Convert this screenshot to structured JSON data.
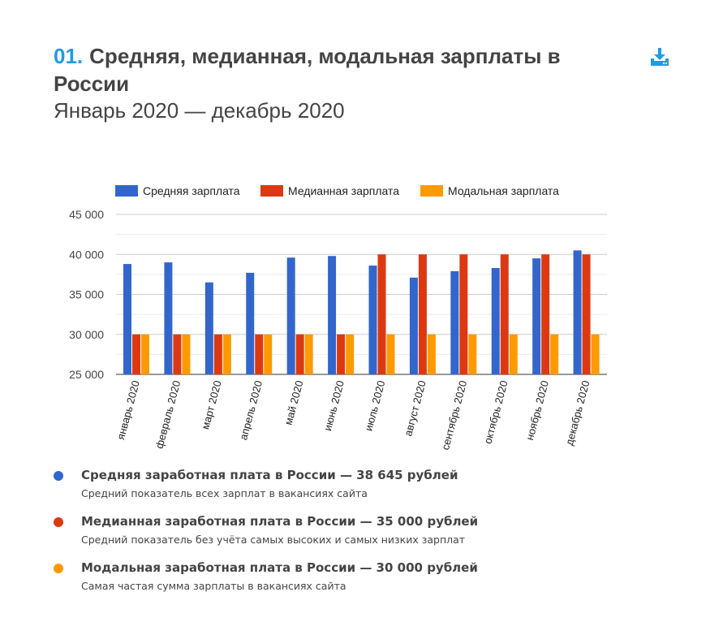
{
  "header": {
    "number": "01.",
    "title": "Средняя, медианная, модальная зарплаты в России",
    "subtitle": "Январь 2020 — декабрь 2020",
    "download_icon": "download-icon"
  },
  "chart_data": {
    "type": "bar",
    "categories": [
      "январь 2020",
      "февраль 2020",
      "март 2020",
      "апрель 2020",
      "май 2020",
      "июнь 2020",
      "июль 2020",
      "август 2020",
      "сентябрь 2020",
      "октябрь 2020",
      "ноябрь 2020",
      "декабрь 2020"
    ],
    "series": [
      {
        "name": "Средняя зарплата",
        "color": "#3366cc",
        "values": [
          38800,
          39000,
          36500,
          37700,
          39600,
          39800,
          38600,
          37100,
          37900,
          38300,
          39500,
          40500
        ]
      },
      {
        "name": "Медианная зарплата",
        "color": "#dc3912",
        "values": [
          30000,
          30000,
          30000,
          30000,
          30000,
          30000,
          40000,
          40000,
          40000,
          40000,
          40000,
          40000
        ]
      },
      {
        "name": "Модальная зарплата",
        "color": "#ff9900",
        "values": [
          30000,
          30000,
          30000,
          30000,
          30000,
          30000,
          30000,
          30000,
          30000,
          30000,
          30000,
          30000
        ]
      }
    ],
    "ylim": [
      25000,
      45000
    ],
    "yticks": [
      "25 000",
      "30 000",
      "35 000",
      "40 000",
      "45 000"
    ],
    "grid": true,
    "legend_placement": "top"
  },
  "legend": [
    {
      "color": "#3366cc",
      "title": "Средняя заработная плата в России — 38 645 рублей",
      "desc": "Средний показатель всех зарплат в вакансиях сайта"
    },
    {
      "color": "#dc3912",
      "title": "Медианная заработная плата в России — 35 000 рублей",
      "desc": "Средний показатель без учёта самых высоких и самых низких зарплат"
    },
    {
      "color": "#ff9900",
      "title": "Модальная заработная плата в России — 30 000 рублей",
      "desc": "Самая частая сумма зарплаты в вакансиях сайта"
    }
  ]
}
